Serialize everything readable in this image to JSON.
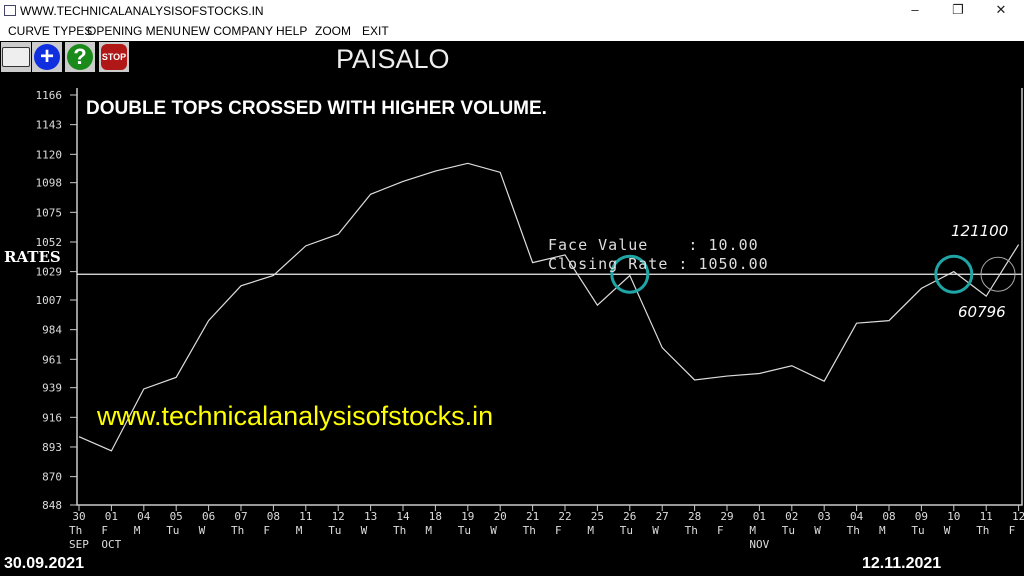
{
  "window": {
    "title": "WWW.TECHNICALANALYSISOFSTOCKS.IN",
    "minimize": "–",
    "restore": "❐",
    "close": "✕"
  },
  "menu": [
    "CURVE TYPES",
    "OPENING MENU",
    "NEW COMPANY",
    "HELP",
    "ZOOM",
    "EXIT"
  ],
  "toolbar": [
    {
      "icon": "book-icon"
    },
    {
      "icon": "plus-icon",
      "label": "+"
    },
    {
      "icon": "help-icon",
      "label": "?"
    },
    {
      "icon": "stop-icon",
      "label": "STOP"
    }
  ],
  "company": "PAISALO",
  "signal": "DOUBLE TOPS CROSSED WITH HIGHER VOLUME.",
  "watermark": "www.technicalanalysisofstocks.in",
  "info": {
    "face_value_label": "Face Value    : 10.00",
    "closing_rate_label": "Closing Rate : 1050.00"
  },
  "volumes": {
    "high": "121100",
    "low": "60796"
  },
  "start_date": "30.09.2021",
  "end_date": "12.11.2021",
  "colors": {
    "circle": "#1fa5a5",
    "watermark": "#ffff00"
  },
  "chart_data": {
    "type": "line",
    "ylabel": "RATES",
    "ylim": [
      848,
      1166
    ],
    "yticks": [
      848,
      870,
      893,
      916,
      939,
      961,
      984,
      1007,
      1029,
      1052,
      1075,
      1098,
      1120,
      1143,
      1166
    ],
    "reference_line": 1027,
    "x": [
      "30",
      "01",
      "04",
      "05",
      "06",
      "07",
      "08",
      "11",
      "12",
      "13",
      "14",
      "18",
      "19",
      "20",
      "21",
      "22",
      "25",
      "26",
      "27",
      "28",
      "29",
      "01",
      "02",
      "03",
      "04",
      "08",
      "09",
      "10",
      "11",
      "12"
    ],
    "weekdays": [
      "Th",
      "F",
      "M",
      "Tu",
      "W",
      "Th",
      "F",
      "M",
      "Tu",
      "W",
      "Th",
      "M",
      "Tu",
      "W",
      "Th",
      "F",
      "M",
      "Tu",
      "W",
      "Th",
      "F",
      "M",
      "Tu",
      "W",
      "Th",
      "M",
      "Tu",
      "W",
      "Th",
      "F"
    ],
    "months": [
      {
        "index": 0,
        "label": "SEP"
      },
      {
        "index": 1,
        "label": "OCT"
      },
      {
        "index": 21,
        "label": "NOV"
      }
    ],
    "values": [
      901,
      890,
      938,
      947,
      991,
      1018,
      1026,
      1049,
      1058,
      1089,
      1099,
      1107,
      1113,
      1106,
      1036,
      1042,
      1003,
      1026,
      970,
      945,
      948,
      950,
      956,
      944,
      989,
      991,
      1016,
      1029,
      1010,
      1050
    ],
    "circled_indices": [
      17,
      27
    ]
  }
}
